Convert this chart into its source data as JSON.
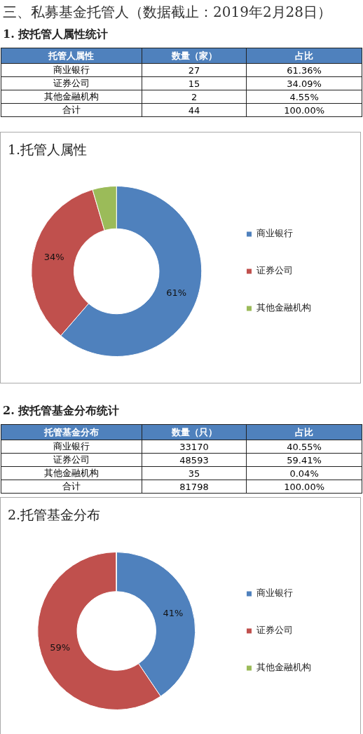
{
  "chart_data": [
    {
      "type": "other",
      "title": "三、私募基金托管人（数据截止：2019年2月28日）",
      "subtitle": "1. 按托管人属性统计",
      "categories": [
        "托管人属性",
        "数量（家）",
        "占比"
      ],
      "cell_labels": [
        [
          "商业银行",
          "27",
          "61.36%"
        ],
        [
          "证券公司",
          "15",
          "34.09%"
        ],
        [
          "其他金融机构",
          "2",
          "4.55%"
        ],
        [
          "合计",
          "44",
          "100.00%"
        ]
      ]
    },
    {
      "type": "donut",
      "title": "1.托管人属性",
      "categories": [
        "商业银行",
        "证券公司",
        "其他金融机构"
      ],
      "values": [
        61.36,
        34.09,
        4.55
      ],
      "colors": [
        "#4f81bd",
        "#c0504d",
        "#9bbb59"
      ],
      "value_labels": [
        "61%",
        "34%",
        null
      ],
      "legend": "right"
    },
    {
      "type": "other",
      "subtitle": "2. 按托管基金分布统计",
      "categories": [
        "托管基金分布",
        "数量（只）",
        "占比"
      ],
      "cell_labels": [
        [
          "商业银行",
          "33170",
          "40.55%"
        ],
        [
          "证券公司",
          "48593",
          "59.41%"
        ],
        [
          "其他金融机构",
          "35",
          "0.04%"
        ],
        [
          "合计",
          "81798",
          "100.00%"
        ]
      ]
    },
    {
      "type": "donut",
      "title": "2.托管基金分布",
      "categories": [
        "商业银行",
        "证券公司",
        "其他金融机构"
      ],
      "values": [
        40.55,
        59.41,
        0.04
      ],
      "colors": [
        "#4f81bd",
        "#c0504d",
        "#9bbb59"
      ],
      "value_labels": [
        "41%",
        "59%",
        null
      ],
      "legend": "right"
    }
  ]
}
